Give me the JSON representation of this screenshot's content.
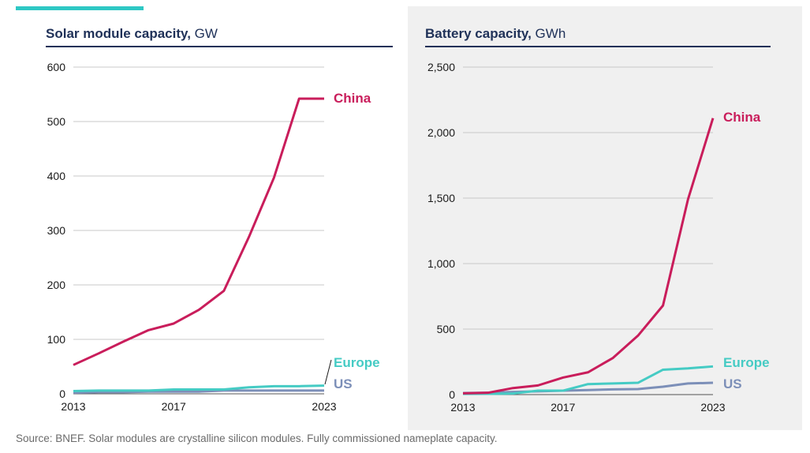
{
  "colors": {
    "accent": "#2ec8c4",
    "china": "#c91d5b",
    "europe": "#45cbc4",
    "us": "#7c8fb8",
    "title": "#1f3158",
    "grid": "#c8c8c8"
  },
  "source": "Source: BNEF. Solar modules are crystalline silicon modules. Fully commissioned nameplate capacity.",
  "chart_data": [
    {
      "type": "line",
      "title": "Solar module capacity,",
      "unit": "GW",
      "xlabel": "",
      "ylabel": "",
      "x": [
        2013,
        2014,
        2015,
        2016,
        2017,
        2018,
        2019,
        2020,
        2021,
        2022,
        2023
      ],
      "xticks": [
        "2013",
        "2017",
        "2023"
      ],
      "yticks": [
        "0",
        "100",
        "200",
        "300",
        "400",
        "500",
        "600"
      ],
      "ylim": [
        0,
        600
      ],
      "grid": true,
      "series": [
        {
          "name": "China",
          "values": [
            53,
            74,
            96,
            117,
            129,
            154,
            189,
            288,
            397,
            542,
            542
          ]
        },
        {
          "name": "Europe",
          "values": [
            5,
            6,
            6,
            6,
            8,
            8,
            8,
            12,
            14,
            14,
            15
          ]
        },
        {
          "name": "US",
          "values": [
            2,
            3,
            3,
            4,
            4,
            4,
            6,
            6,
            6,
            6,
            6
          ]
        }
      ]
    },
    {
      "type": "line",
      "title": "Battery capacity,",
      "unit": "GWh",
      "xlabel": "",
      "ylabel": "",
      "x": [
        2013,
        2014,
        2015,
        2016,
        2017,
        2018,
        2019,
        2020,
        2021,
        2022,
        2023
      ],
      "xticks": [
        "2013",
        "2017",
        "2023"
      ],
      "yticks": [
        "0",
        "500",
        "1,000",
        "1,500",
        "2,000",
        "2,500"
      ],
      "ylim": [
        0,
        2500
      ],
      "grid": true,
      "series": [
        {
          "name": "China",
          "values": [
            10,
            14,
            50,
            70,
            130,
            170,
            280,
            450,
            680,
            1490,
            2110
          ]
        },
        {
          "name": "Europe",
          "values": [
            5,
            6,
            8,
            30,
            30,
            80,
            85,
            90,
            190,
            200,
            215
          ]
        },
        {
          "name": "US",
          "values": [
            12,
            14,
            20,
            25,
            30,
            35,
            40,
            42,
            60,
            85,
            90
          ]
        }
      ]
    }
  ]
}
